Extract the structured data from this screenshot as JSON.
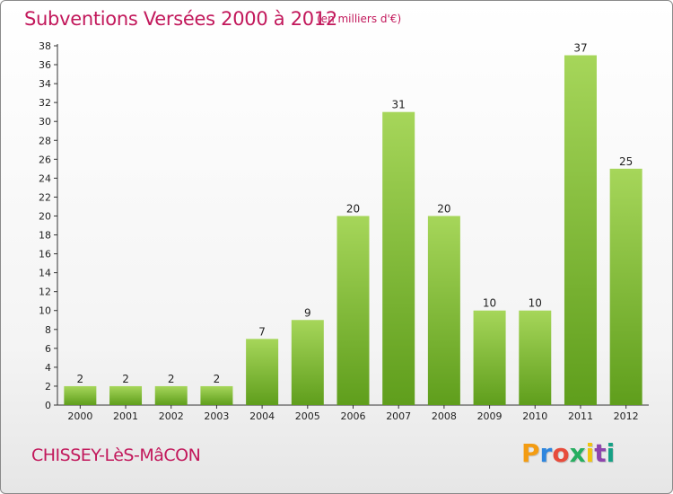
{
  "header": {
    "title": "Subventions Versées 2000 à 2012",
    "unit_note": "(en milliers d'€)"
  },
  "footer": {
    "commune": "CHISSEY-LèS-MâCON",
    "brand_letters": [
      "P",
      "r",
      "o",
      "x",
      "i",
      "t",
      "i"
    ],
    "brand_colors": [
      "#f39c12",
      "#2e86de",
      "#e74c3c",
      "#27ae60",
      "#f1c40f",
      "#8e44ad",
      "#16a085"
    ]
  },
  "colors": {
    "bar_top": "#a6d65a",
    "bar_bottom": "#5f9e1c",
    "title": "#c2185b"
  },
  "chart_data": {
    "type": "bar",
    "title": "Subventions Versées 2000 à 2012",
    "subtitle": "(en milliers d'€)",
    "categories": [
      "2000",
      "2001",
      "2002",
      "2003",
      "2004",
      "2005",
      "2006",
      "2007",
      "2008",
      "2009",
      "2010",
      "2011",
      "2012"
    ],
    "values": [
      2,
      2,
      2,
      2,
      7,
      9,
      20,
      31,
      20,
      10,
      10,
      37,
      25
    ],
    "xlabel": "",
    "ylabel": "",
    "ylim": [
      0,
      38
    ],
    "yticks": [
      0,
      2,
      4,
      6,
      8,
      10,
      12,
      14,
      16,
      18,
      20,
      22,
      24,
      26,
      28,
      30,
      32,
      34,
      36,
      38
    ],
    "grid": false,
    "data_labels": true
  }
}
